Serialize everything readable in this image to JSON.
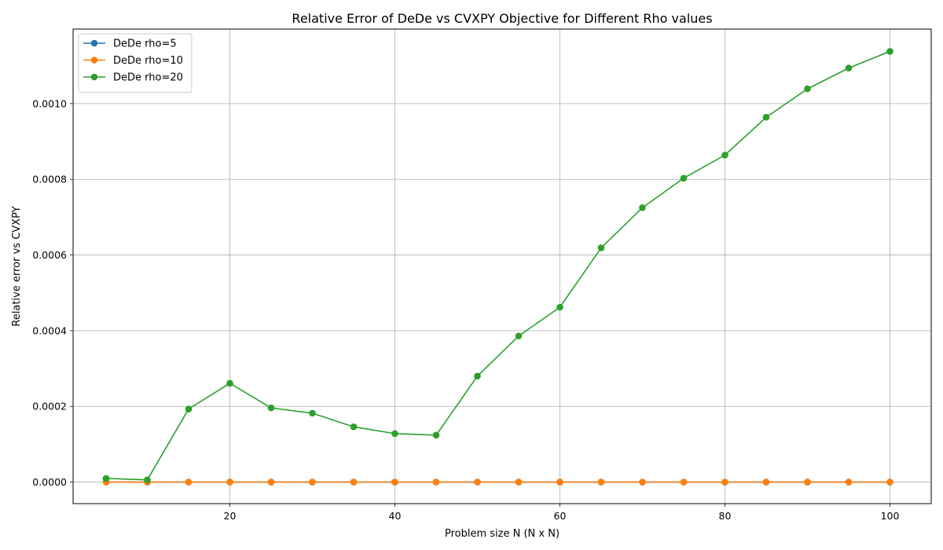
{
  "chart_data": {
    "type": "line",
    "title": "Relative Error of DeDe vs CVXPY Objective for Different Rho values",
    "xlabel": "Problem size N (N x N)",
    "ylabel": "Relative error vs CVXPY",
    "xlim": [
      1,
      105
    ],
    "ylim": [
      -5.7e-05,
      0.001197
    ],
    "xticks": [
      20,
      40,
      60,
      80,
      100
    ],
    "xtick_labels": [
      "20",
      "40",
      "60",
      "80",
      "100"
    ],
    "yticks": [
      0,
      0.0002,
      0.0004,
      0.0006,
      0.0008,
      0.001
    ],
    "ytick_labels": [
      "0.0000",
      "0.0002",
      "0.0004",
      "0.0006",
      "0.0008",
      "0.0010"
    ],
    "grid": true,
    "legend_position": "top-left",
    "x": [
      5,
      10,
      15,
      20,
      25,
      30,
      35,
      40,
      45,
      50,
      55,
      60,
      65,
      70,
      75,
      80,
      85,
      90,
      95,
      100
    ],
    "series": [
      {
        "name": "DeDe rho=5",
        "color": "#1f77b4",
        "values": [
          0,
          0,
          0,
          0,
          0,
          0,
          0,
          0,
          0,
          0,
          0,
          0,
          0,
          0,
          0,
          0,
          0,
          0,
          0,
          0
        ]
      },
      {
        "name": "DeDe rho=10",
        "color": "#ff7f0e",
        "values": [
          0,
          0,
          0,
          0,
          0,
          0,
          0,
          0,
          0,
          0,
          0,
          0,
          0,
          0,
          0,
          0,
          0,
          0,
          0,
          0
        ]
      },
      {
        "name": "DeDe rho=20",
        "color": "#2ca02c",
        "values": [
          9.5e-06,
          6e-06,
          0.000193,
          0.000261,
          0.000196,
          0.000182,
          0.000146,
          0.000128,
          0.000124,
          0.00028,
          0.000386,
          0.000462,
          0.000619,
          0.000725,
          0.000803,
          0.000864,
          0.000964,
          0.001039,
          0.001094,
          0.001138
        ]
      }
    ]
  }
}
